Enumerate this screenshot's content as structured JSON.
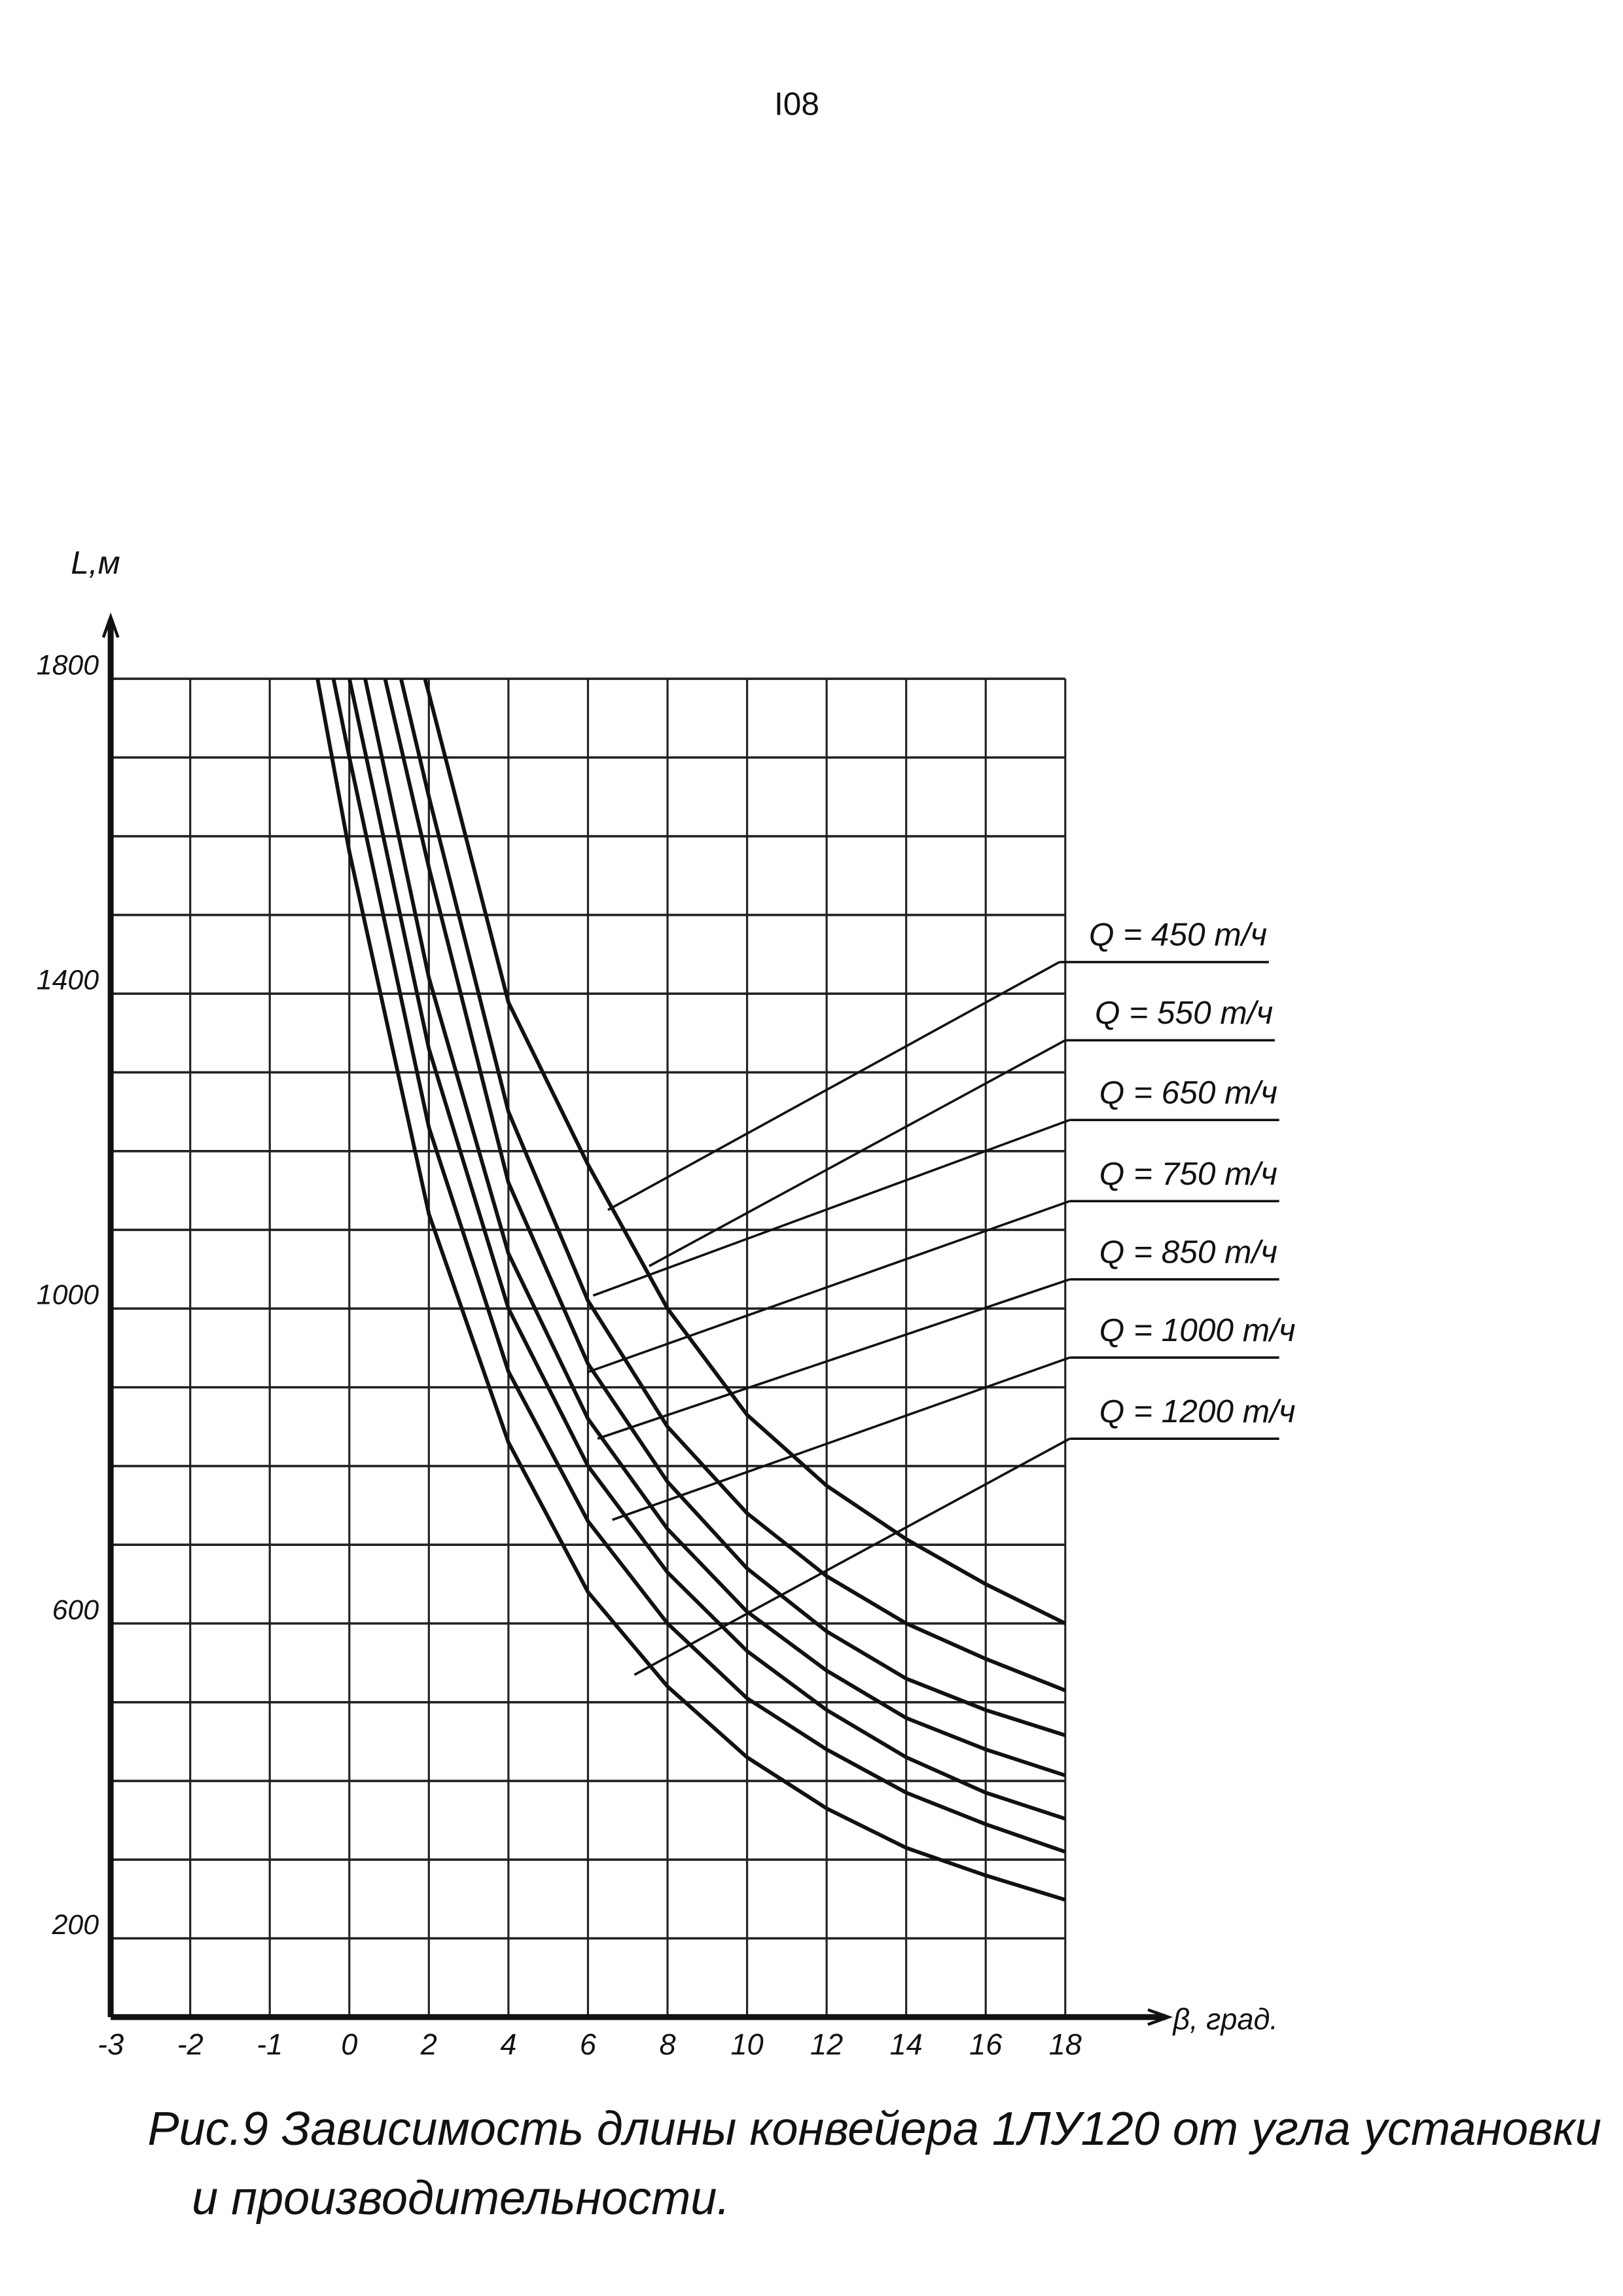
{
  "page_number": "I08",
  "chart_data": {
    "type": "line",
    "y_label": "L,м",
    "x_label": "β, град.",
    "xlim": [
      -3,
      18
    ],
    "xticks": [
      -3,
      -2,
      -1,
      0,
      2,
      4,
      6,
      8,
      10,
      12,
      14,
      16,
      18
    ],
    "ylim": [
      100,
      1800
    ],
    "yticks": [
      200,
      600,
      1000,
      1400,
      1800
    ],
    "ygrid": [
      200,
      300,
      400,
      500,
      600,
      700,
      800,
      900,
      1000,
      1100,
      1200,
      1300,
      1400,
      1500,
      1600,
      1700,
      1800
    ],
    "grid": true,
    "series": [
      {
        "name": "Q = 450 т/ч",
        "color": "#111111",
        "x": [
          1.9,
          2,
          4,
          6,
          8,
          10,
          12,
          14,
          16,
          18
        ],
        "values": [
          1800,
          1781,
          1389,
          1183,
          1000,
          865,
          775,
          707,
          650,
          600
        ]
      },
      {
        "name": "Q = 550 т/ч",
        "color": "#111111",
        "x": [
          1.3,
          2,
          4,
          6,
          8,
          10,
          12,
          14,
          16,
          18
        ],
        "values": [
          1800,
          1650,
          1250,
          1010,
          850,
          740,
          660,
          600,
          555,
          515
        ]
      },
      {
        "name": "Q = 650 т/ч",
        "color": "#111111",
        "x": [
          0.9,
          2,
          4,
          6,
          8,
          10,
          12,
          14,
          16,
          18
        ],
        "values": [
          1800,
          1560,
          1160,
          930,
          780,
          670,
          590,
          530,
          490,
          458
        ]
      },
      {
        "name": "Q = 750 т/ч",
        "color": "#111111",
        "x": [
          0.4,
          2,
          4,
          6,
          8,
          10,
          12,
          14,
          16,
          18
        ],
        "values": [
          1800,
          1420,
          1070,
          860,
          720,
          615,
          540,
          480,
          440,
          407
        ]
      },
      {
        "name": "Q = 850 т/ч",
        "color": "#111111",
        "x": [
          0,
          2,
          4,
          6,
          8,
          10,
          12,
          14,
          16,
          18
        ],
        "values": [
          1800,
          1330,
          1000,
          800,
          665,
          565,
          490,
          430,
          385,
          352
        ]
      },
      {
        "name": "Q = 1000 т/ч",
        "color": "#111111",
        "x": [
          -0.2,
          0,
          2,
          4,
          6,
          8,
          10,
          12,
          14,
          16,
          18
        ],
        "values": [
          1800,
          1700,
          1230,
          920,
          730,
          600,
          505,
          440,
          385,
          345,
          310
        ]
      },
      {
        "name": "Q = 1200 т/ч",
        "color": "#111111",
        "x": [
          -0.4,
          0,
          2,
          4,
          6,
          8,
          10,
          12,
          14,
          16,
          18
        ],
        "values": [
          1800,
          1580,
          1120,
          830,
          640,
          520,
          430,
          365,
          315,
          280,
          249
        ]
      }
    ]
  },
  "caption": {
    "line1": "Рис.9 Зависимость длины конвейера 1ЛУ120 от угла установки",
    "line2": "и производительности."
  }
}
